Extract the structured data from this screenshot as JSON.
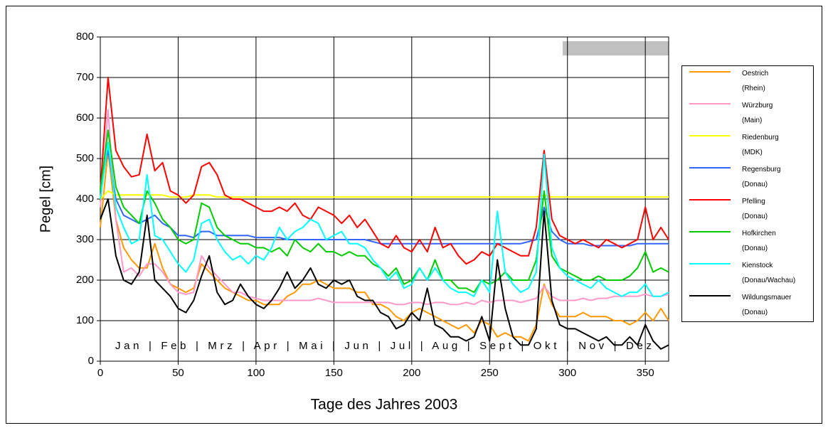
{
  "chart_data": {
    "type": "line",
    "y_label": "Pegel [cm]",
    "x_label": "Tage des Jahres 2003",
    "annotation": "Jan  |  Feb  |  Mrz  |  Apr  |  Mai  |  Jun  |  Jul  |  Aug  |  Sept  |  Okt  |  Nov  |  Dez",
    "xlim": [
      0,
      365
    ],
    "xticks": [
      0,
      50,
      100,
      150,
      200,
      250,
      300,
      350
    ],
    "ylim": [
      0,
      800
    ],
    "yticks": [
      0,
      100,
      200,
      300,
      400,
      500,
      600,
      700,
      800
    ],
    "grid": true,
    "legend": "right",
    "x": [
      0,
      5,
      10,
      15,
      20,
      25,
      30,
      35,
      40,
      45,
      50,
      55,
      60,
      65,
      70,
      75,
      80,
      85,
      90,
      95,
      100,
      105,
      110,
      115,
      120,
      125,
      130,
      135,
      140,
      145,
      150,
      155,
      160,
      165,
      170,
      175,
      180,
      185,
      190,
      195,
      200,
      205,
      210,
      215,
      220,
      225,
      230,
      235,
      240,
      245,
      250,
      255,
      260,
      265,
      270,
      275,
      280,
      285,
      290,
      295,
      300,
      305,
      310,
      315,
      320,
      325,
      330,
      335,
      340,
      345,
      350,
      355,
      360,
      365
    ],
    "series": [
      {
        "name": "Oestrich (Rhein)",
        "color": "#ff9900",
        "values": [
          330,
          520,
          350,
          280,
          250,
          230,
          230,
          290,
          230,
          190,
          180,
          170,
          180,
          240,
          220,
          200,
          180,
          170,
          160,
          150,
          150,
          140,
          140,
          140,
          160,
          170,
          190,
          190,
          200,
          190,
          180,
          180,
          180,
          170,
          170,
          140,
          140,
          130,
          110,
          100,
          120,
          130,
          120,
          110,
          100,
          90,
          80,
          90,
          70,
          100,
          90,
          60,
          70,
          60,
          60,
          50,
          90,
          190,
          140,
          110,
          110,
          110,
          120,
          110,
          110,
          110,
          100,
          100,
          90,
          100,
          120,
          100,
          130,
          100
        ]
      },
      {
        "name": "Würzburg (Main)",
        "color": "#ff99cc",
        "values": [
          380,
          620,
          350,
          220,
          230,
          210,
          240,
          240,
          220,
          190,
          170,
          165,
          170,
          260,
          230,
          210,
          190,
          170,
          170,
          160,
          155,
          150,
          150,
          150,
          150,
          150,
          150,
          150,
          155,
          150,
          145,
          145,
          145,
          145,
          145,
          145,
          145,
          145,
          140,
          140,
          145,
          145,
          140,
          145,
          145,
          140,
          140,
          145,
          140,
          150,
          145,
          150,
          150,
          150,
          145,
          150,
          155,
          185,
          160,
          150,
          150,
          150,
          155,
          150,
          155,
          155,
          160,
          160,
          160,
          160,
          165,
          160,
          160,
          165
        ]
      },
      {
        "name": "Riedenburg (MDK)",
        "color": "#ffff00",
        "values": [
          400,
          420,
          410,
          410,
          410,
          410,
          410,
          410,
          410,
          405,
          405,
          405,
          410,
          410,
          410,
          405,
          405,
          405,
          405,
          405,
          405,
          405,
          405,
          405,
          405,
          405,
          405,
          405,
          405,
          405,
          405,
          405,
          405,
          405,
          405,
          405,
          405,
          405,
          405,
          405,
          405,
          405,
          405,
          405,
          405,
          405,
          405,
          405,
          405,
          405,
          405,
          405,
          405,
          405,
          405,
          405,
          405,
          410,
          405,
          405,
          405,
          405,
          405,
          405,
          405,
          405,
          405,
          405,
          405,
          405,
          405,
          405,
          405,
          405
        ]
      },
      {
        "name": "Regensburg (Donau)",
        "color": "#3366ff",
        "values": [
          430,
          520,
          400,
          360,
          350,
          340,
          350,
          360,
          340,
          330,
          310,
          310,
          305,
          320,
          320,
          310,
          310,
          310,
          310,
          310,
          305,
          305,
          305,
          305,
          300,
          300,
          300,
          300,
          300,
          300,
          300,
          300,
          300,
          300,
          300,
          295,
          290,
          290,
          290,
          290,
          290,
          290,
          290,
          290,
          290,
          290,
          290,
          290,
          290,
          290,
          290,
          290,
          290,
          290,
          290,
          295,
          300,
          380,
          320,
          300,
          290,
          290,
          290,
          285,
          285,
          285,
          285,
          285,
          285,
          290,
          290,
          290,
          290,
          290
        ]
      },
      {
        "name": "Pfelling (Donau)",
        "color": "#ff0000",
        "values": [
          420,
          700,
          520,
          480,
          455,
          460,
          560,
          470,
          490,
          420,
          410,
          390,
          410,
          480,
          490,
          460,
          410,
          400,
          400,
          390,
          380,
          370,
          370,
          380,
          370,
          390,
          360,
          350,
          380,
          370,
          360,
          340,
          360,
          330,
          350,
          320,
          290,
          280,
          310,
          280,
          270,
          300,
          270,
          330,
          280,
          290,
          260,
          240,
          250,
          270,
          260,
          290,
          280,
          270,
          260,
          260,
          330,
          520,
          350,
          310,
          300,
          290,
          300,
          290,
          280,
          300,
          290,
          280,
          290,
          300,
          380,
          300,
          330,
          300
        ]
      },
      {
        "name": "Hofkirchen (Donau)",
        "color": "#00cc00",
        "values": [
          420,
          570,
          430,
          380,
          360,
          340,
          420,
          390,
          350,
          330,
          300,
          290,
          300,
          390,
          380,
          330,
          310,
          300,
          290,
          290,
          280,
          280,
          270,
          280,
          260,
          300,
          280,
          270,
          290,
          270,
          270,
          260,
          270,
          260,
          260,
          240,
          230,
          210,
          230,
          190,
          200,
          230,
          200,
          250,
          200,
          200,
          180,
          180,
          170,
          200,
          190,
          200,
          220,
          200,
          200,
          200,
          250,
          420,
          260,
          230,
          220,
          210,
          200,
          200,
          210,
          200,
          200,
          200,
          210,
          230,
          270,
          220,
          230,
          220
        ]
      },
      {
        "name": "Kienstock (Donau/Wachau)",
        "color": "#00ffff",
        "values": [
          400,
          540,
          380,
          330,
          290,
          300,
          460,
          310,
          300,
          270,
          240,
          220,
          250,
          340,
          350,
          300,
          270,
          250,
          260,
          240,
          260,
          250,
          280,
          330,
          300,
          320,
          330,
          350,
          340,
          300,
          310,
          320,
          290,
          290,
          280,
          250,
          230,
          200,
          220,
          180,
          190,
          230,
          200,
          230,
          200,
          180,
          170,
          170,
          160,
          200,
          170,
          370,
          220,
          190,
          170,
          180,
          220,
          510,
          280,
          230,
          210,
          200,
          190,
          180,
          200,
          180,
          170,
          160,
          170,
          170,
          190,
          160,
          160,
          170
        ]
      },
      {
        "name": "Wildungsmauer (Donau)",
        "color": "#000000",
        "values": [
          350,
          400,
          260,
          200,
          190,
          220,
          360,
          200,
          180,
          160,
          130,
          120,
          150,
          210,
          260,
          170,
          140,
          150,
          190,
          160,
          140,
          130,
          150,
          180,
          220,
          180,
          200,
          230,
          190,
          180,
          200,
          190,
          200,
          160,
          150,
          150,
          120,
          110,
          80,
          90,
          120,
          100,
          180,
          90,
          80,
          60,
          60,
          50,
          60,
          110,
          50,
          250,
          130,
          60,
          40,
          40,
          80,
          370,
          150,
          90,
          80,
          80,
          70,
          60,
          50,
          60,
          40,
          40,
          60,
          40,
          90,
          50,
          30,
          40
        ]
      }
    ]
  }
}
